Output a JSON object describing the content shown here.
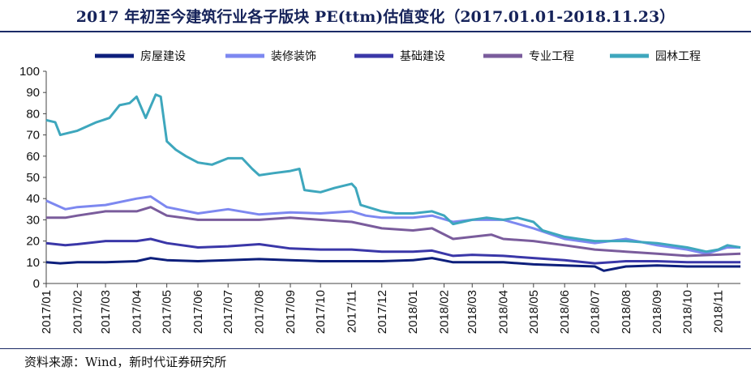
{
  "title": "2017 年初至今建筑行业各子版块 PE(ttm)估值变化（2017.01.01-2018.11.23）",
  "source": "资料来源：Wind，新时代证券研究所",
  "chart_data": {
    "type": "line",
    "x_ticks": [
      "2017/01",
      "2017/02",
      "2017/03",
      "2017/04",
      "2017/05",
      "2017/06",
      "2017/07",
      "2017/08",
      "2017/09",
      "2017/10",
      "2017/11",
      "2017/12",
      "2018/01",
      "2018/02",
      "2018/03",
      "2018/04",
      "2018/05",
      "2018/06",
      "2018/07",
      "2018/08",
      "2018/09",
      "2018/10",
      "2018/11"
    ],
    "y_ticks": [
      0,
      10,
      20,
      30,
      40,
      50,
      60,
      70,
      80,
      90,
      100
    ],
    "ylim": [
      0,
      100
    ],
    "grid": false,
    "legend_position": "top",
    "x_range": [
      "2017-01-01",
      "2018-11-23"
    ],
    "series": [
      {
        "name": "房屋建设",
        "color": "#0d1f7c",
        "points": [
          [
            "2017-01-01",
            10
          ],
          [
            "2017-01-15",
            9.5
          ],
          [
            "2017-02-01",
            10
          ],
          [
            "2017-03-01",
            10
          ],
          [
            "2017-04-01",
            10.5
          ],
          [
            "2017-04-15",
            12
          ],
          [
            "2017-05-01",
            11
          ],
          [
            "2017-06-01",
            10.5
          ],
          [
            "2017-07-01",
            11
          ],
          [
            "2017-08-01",
            11.5
          ],
          [
            "2017-09-01",
            11
          ],
          [
            "2017-10-01",
            10.5
          ],
          [
            "2017-11-01",
            10.5
          ],
          [
            "2017-12-01",
            10.5
          ],
          [
            "2018-01-01",
            11
          ],
          [
            "2018-01-20",
            12
          ],
          [
            "2018-02-10",
            10
          ],
          [
            "2018-03-01",
            10
          ],
          [
            "2018-04-01",
            10
          ],
          [
            "2018-05-01",
            9
          ],
          [
            "2018-06-01",
            8.5
          ],
          [
            "2018-07-01",
            8
          ],
          [
            "2018-07-10",
            6
          ],
          [
            "2018-08-01",
            8
          ],
          [
            "2018-09-01",
            8.5
          ],
          [
            "2018-10-01",
            8
          ],
          [
            "2018-11-23",
            8
          ]
        ]
      },
      {
        "name": "装修装饰",
        "color": "#7d88f0",
        "points": [
          [
            "2017-01-01",
            39
          ],
          [
            "2017-01-20",
            35
          ],
          [
            "2017-02-01",
            36
          ],
          [
            "2017-03-01",
            37
          ],
          [
            "2017-04-01",
            40
          ],
          [
            "2017-04-15",
            41
          ],
          [
            "2017-05-01",
            36
          ],
          [
            "2017-06-01",
            33
          ],
          [
            "2017-07-01",
            35
          ],
          [
            "2017-08-01",
            32.5
          ],
          [
            "2017-09-01",
            33.5
          ],
          [
            "2017-10-01",
            33
          ],
          [
            "2017-11-01",
            34
          ],
          [
            "2017-11-15",
            32
          ],
          [
            "2017-12-01",
            31
          ],
          [
            "2018-01-01",
            31
          ],
          [
            "2018-01-20",
            32
          ],
          [
            "2018-02-10",
            29
          ],
          [
            "2018-03-01",
            30
          ],
          [
            "2018-04-01",
            30
          ],
          [
            "2018-05-01",
            26
          ],
          [
            "2018-06-01",
            21
          ],
          [
            "2018-07-01",
            19
          ],
          [
            "2018-08-01",
            21
          ],
          [
            "2018-09-01",
            18
          ],
          [
            "2018-10-01",
            16
          ],
          [
            "2018-10-20",
            14
          ],
          [
            "2018-11-10",
            17
          ],
          [
            "2018-11-23",
            17
          ]
        ]
      },
      {
        "name": "基础建设",
        "color": "#3a37a8",
        "points": [
          [
            "2017-01-01",
            19
          ],
          [
            "2017-01-20",
            18
          ],
          [
            "2017-02-01",
            18.5
          ],
          [
            "2017-03-01",
            20
          ],
          [
            "2017-04-01",
            20
          ],
          [
            "2017-04-15",
            21
          ],
          [
            "2017-05-01",
            19
          ],
          [
            "2017-06-01",
            17
          ],
          [
            "2017-07-01",
            17.5
          ],
          [
            "2017-08-01",
            18.5
          ],
          [
            "2017-09-01",
            16.5
          ],
          [
            "2017-10-01",
            16
          ],
          [
            "2017-11-01",
            16
          ],
          [
            "2017-12-01",
            15
          ],
          [
            "2018-01-01",
            15
          ],
          [
            "2018-01-20",
            15.5
          ],
          [
            "2018-02-10",
            13
          ],
          [
            "2018-03-01",
            13.5
          ],
          [
            "2018-04-01",
            13
          ],
          [
            "2018-05-01",
            12
          ],
          [
            "2018-06-01",
            11
          ],
          [
            "2018-07-01",
            9.5
          ],
          [
            "2018-08-01",
            10.5
          ],
          [
            "2018-09-01",
            10.5
          ],
          [
            "2018-10-01",
            10
          ],
          [
            "2018-11-23",
            10
          ]
        ]
      },
      {
        "name": "专业工程",
        "color": "#7a5c9c",
        "points": [
          [
            "2017-01-01",
            31
          ],
          [
            "2017-01-20",
            31
          ],
          [
            "2017-02-01",
            32
          ],
          [
            "2017-03-01",
            34
          ],
          [
            "2017-04-01",
            34
          ],
          [
            "2017-04-15",
            36
          ],
          [
            "2017-05-01",
            32
          ],
          [
            "2017-06-01",
            30
          ],
          [
            "2017-07-01",
            30
          ],
          [
            "2017-08-01",
            30
          ],
          [
            "2017-09-01",
            31
          ],
          [
            "2017-10-01",
            30
          ],
          [
            "2017-11-01",
            29
          ],
          [
            "2017-12-01",
            26
          ],
          [
            "2018-01-01",
            25
          ],
          [
            "2018-01-20",
            26
          ],
          [
            "2018-02-10",
            21
          ],
          [
            "2018-03-01",
            22
          ],
          [
            "2018-03-20",
            23
          ],
          [
            "2018-04-01",
            21
          ],
          [
            "2018-05-01",
            20
          ],
          [
            "2018-06-01",
            18
          ],
          [
            "2018-07-01",
            16
          ],
          [
            "2018-08-01",
            15
          ],
          [
            "2018-09-01",
            14
          ],
          [
            "2018-10-01",
            13
          ],
          [
            "2018-11-23",
            14
          ]
        ]
      },
      {
        "name": "园林工程",
        "color": "#3ea7bd",
        "points": [
          [
            "2017-01-01",
            77
          ],
          [
            "2017-01-10",
            76
          ],
          [
            "2017-01-15",
            70
          ],
          [
            "2017-02-01",
            72
          ],
          [
            "2017-02-20",
            76
          ],
          [
            "2017-03-05",
            78
          ],
          [
            "2017-03-15",
            84
          ],
          [
            "2017-03-25",
            85
          ],
          [
            "2017-04-01",
            88
          ],
          [
            "2017-04-10",
            78
          ],
          [
            "2017-04-20",
            89
          ],
          [
            "2017-04-25",
            88
          ],
          [
            "2017-05-01",
            67
          ],
          [
            "2017-05-10",
            63
          ],
          [
            "2017-05-20",
            60
          ],
          [
            "2017-06-01",
            57
          ],
          [
            "2017-06-15",
            56
          ],
          [
            "2017-07-01",
            59
          ],
          [
            "2017-07-15",
            59
          ],
          [
            "2017-07-25",
            54
          ],
          [
            "2017-08-01",
            51
          ],
          [
            "2017-08-15",
            52
          ],
          [
            "2017-09-01",
            53
          ],
          [
            "2017-09-10",
            54
          ],
          [
            "2017-09-15",
            44
          ],
          [
            "2017-10-01",
            43
          ],
          [
            "2017-10-15",
            45
          ],
          [
            "2017-11-01",
            47
          ],
          [
            "2017-11-05",
            45
          ],
          [
            "2017-11-10",
            37
          ],
          [
            "2017-12-01",
            34
          ],
          [
            "2017-12-15",
            33
          ],
          [
            "2018-01-01",
            33
          ],
          [
            "2018-01-20",
            34
          ],
          [
            "2018-02-01",
            32
          ],
          [
            "2018-02-10",
            28
          ],
          [
            "2018-03-01",
            30
          ],
          [
            "2018-03-15",
            31
          ],
          [
            "2018-04-01",
            30
          ],
          [
            "2018-04-15",
            31
          ],
          [
            "2018-05-01",
            29
          ],
          [
            "2018-05-10",
            25
          ],
          [
            "2018-06-01",
            22
          ],
          [
            "2018-06-15",
            21
          ],
          [
            "2018-07-01",
            20
          ],
          [
            "2018-08-01",
            20
          ],
          [
            "2018-09-01",
            19
          ],
          [
            "2018-10-01",
            17
          ],
          [
            "2018-10-20",
            15
          ],
          [
            "2018-11-01",
            16
          ],
          [
            "2018-11-10",
            18
          ],
          [
            "2018-11-23",
            17
          ]
        ]
      }
    ]
  }
}
